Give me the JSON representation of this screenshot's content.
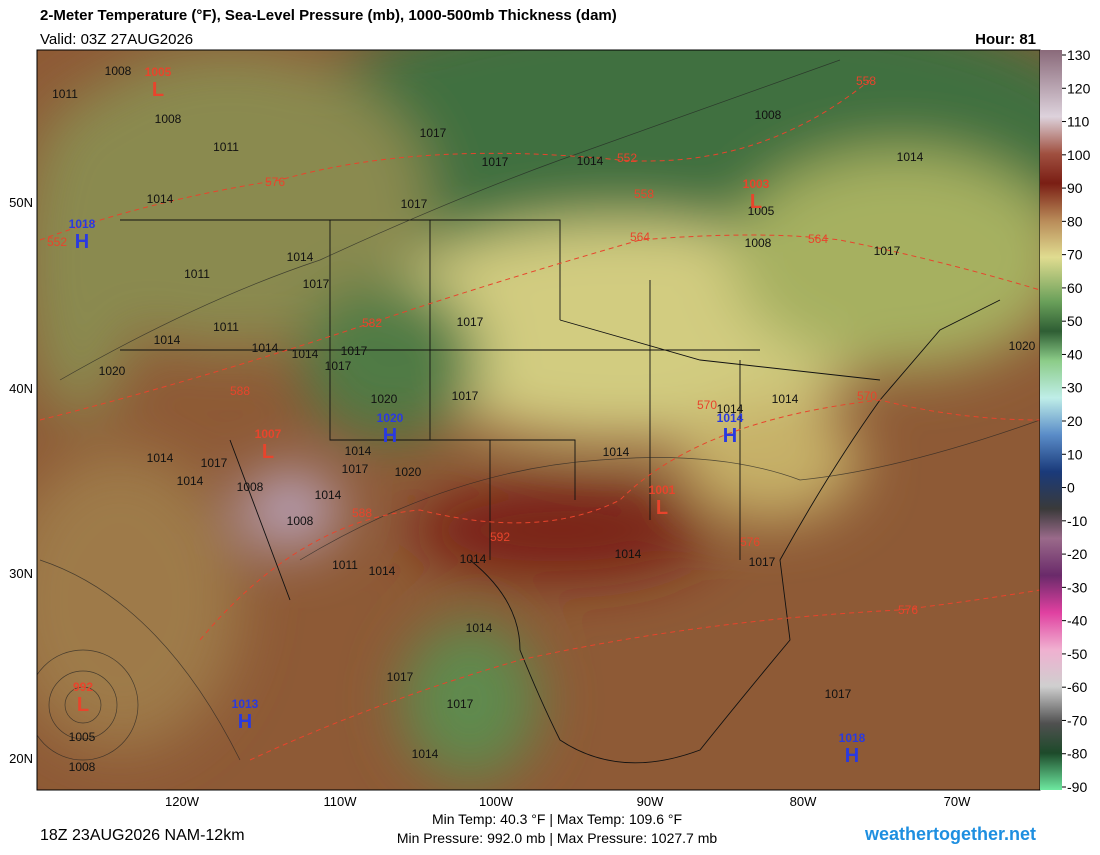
{
  "header": {
    "title": "2-Meter Temperature (°F), Sea-Level Pressure (mb), 1000-500mb Thickness (dam)",
    "valid": "Valid: 03Z 27AUG2026",
    "hour": "Hour: 81"
  },
  "map": {
    "lat_labels": [
      "50N",
      "40N",
      "30N",
      "20N"
    ],
    "lon_labels": [
      "120W",
      "110W",
      "100W",
      "90W",
      "80W",
      "70W"
    ],
    "centers": [
      {
        "letter": "L",
        "value": 1005
      },
      {
        "letter": "H",
        "value": 1018
      },
      {
        "letter": "L",
        "value": 1003
      },
      {
        "letter": "H",
        "value": 1020
      },
      {
        "letter": "H",
        "value": 1014
      },
      {
        "letter": "L",
        "value": 1001
      },
      {
        "letter": "L",
        "value": 1007
      },
      {
        "letter": "H",
        "value": 1013
      },
      {
        "letter": "L",
        "value": 992
      },
      {
        "letter": "H",
        "value": 1018
      }
    ],
    "isobar_labels": [
      1008,
      1011,
      1008,
      1011,
      1014,
      1011,
      1014,
      1017,
      1011,
      1014,
      1014,
      1014,
      1017,
      1017,
      1020,
      1020,
      1017,
      1017,
      1017,
      1017,
      1017,
      1014,
      1008,
      1005,
      1008,
      1014,
      1017,
      1020,
      1014,
      1014,
      1017,
      1014,
      1014,
      1014,
      1014,
      1017,
      1014,
      1008,
      1008,
      1014,
      1014,
      1017,
      1020,
      1011,
      1014,
      1014,
      1017,
      1017,
      1005,
      1008,
      1014,
      1017
    ],
    "thickness_labels": [
      552,
      576,
      582,
      588,
      552,
      558,
      564,
      564,
      558,
      570,
      570,
      576,
      592,
      588,
      576
    ]
  },
  "colorbar": {
    "ticks": [
      130,
      120,
      110,
      100,
      90,
      80,
      70,
      60,
      50,
      40,
      30,
      20,
      10,
      0,
      -10,
      -20,
      -30,
      -40,
      -50,
      -60,
      -70,
      -80,
      -90
    ]
  },
  "footer": {
    "run": "18Z 23AUG2026 NAM-12km",
    "min_max_temp": "Min Temp: 40.3 °F | Max Temp: 109.6 °F",
    "min_max_pressure": "Min Pressure: 992.0 mb | Max Pressure: 1027.7 mb",
    "site": "weathertogether.net"
  }
}
